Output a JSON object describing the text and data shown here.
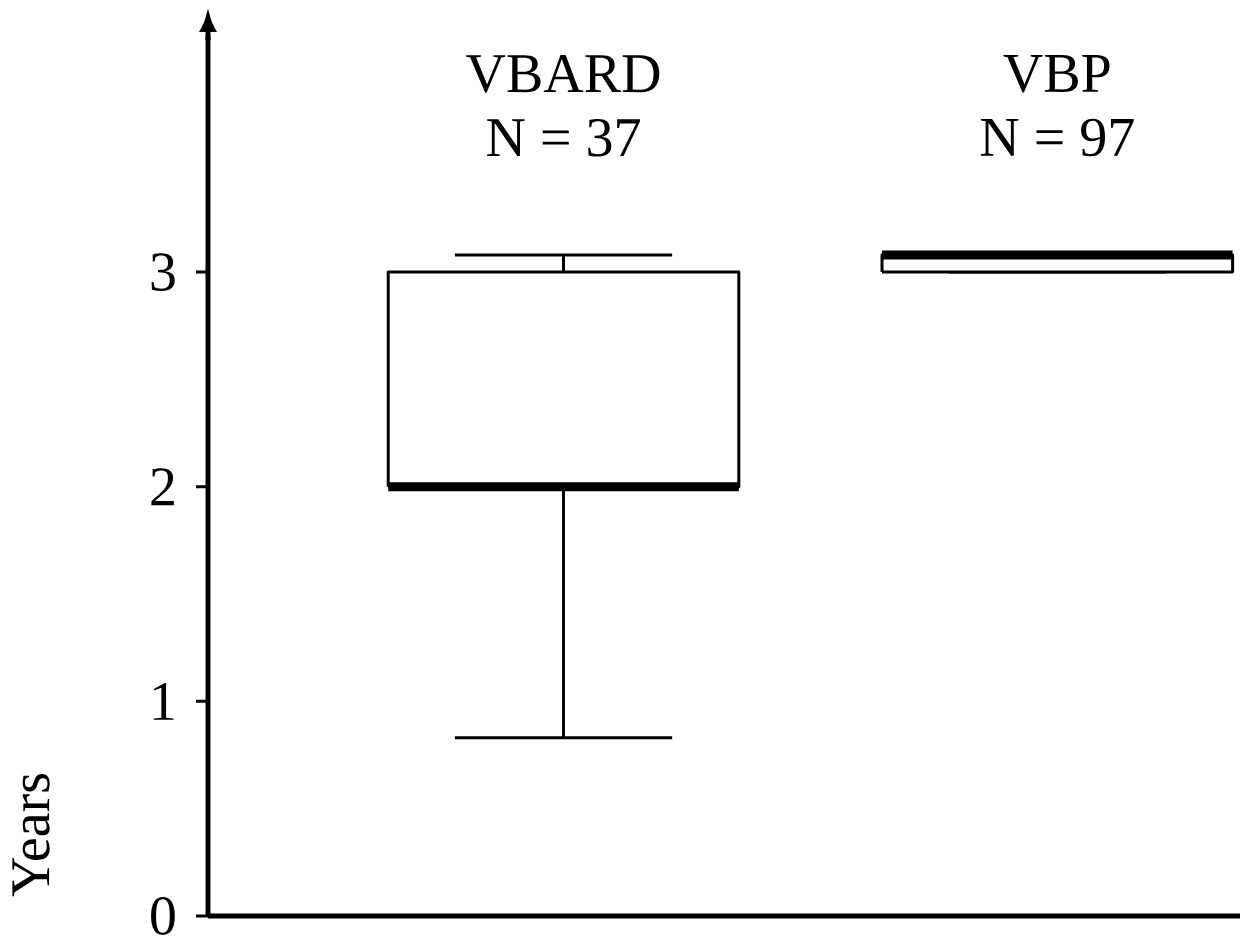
{
  "chart_data": {
    "type": "box",
    "ylabel": "Years",
    "categories": [
      "VBARD",
      "VBP"
    ],
    "annotations": [
      "N = 37",
      "N = 97"
    ],
    "boxes": [
      {
        "low": 0.83,
        "q1": 2.0,
        "median": 2.0,
        "q3": 3.0,
        "high": 3.08
      },
      {
        "low": 3.0,
        "q1": 3.0,
        "median": 3.08,
        "q3": 3.08,
        "high": 3.08
      }
    ],
    "color": "#000000",
    "ylim": [
      0,
      4.1
    ],
    "yticks": [
      0,
      1,
      2,
      3
    ],
    "grid": false
  }
}
